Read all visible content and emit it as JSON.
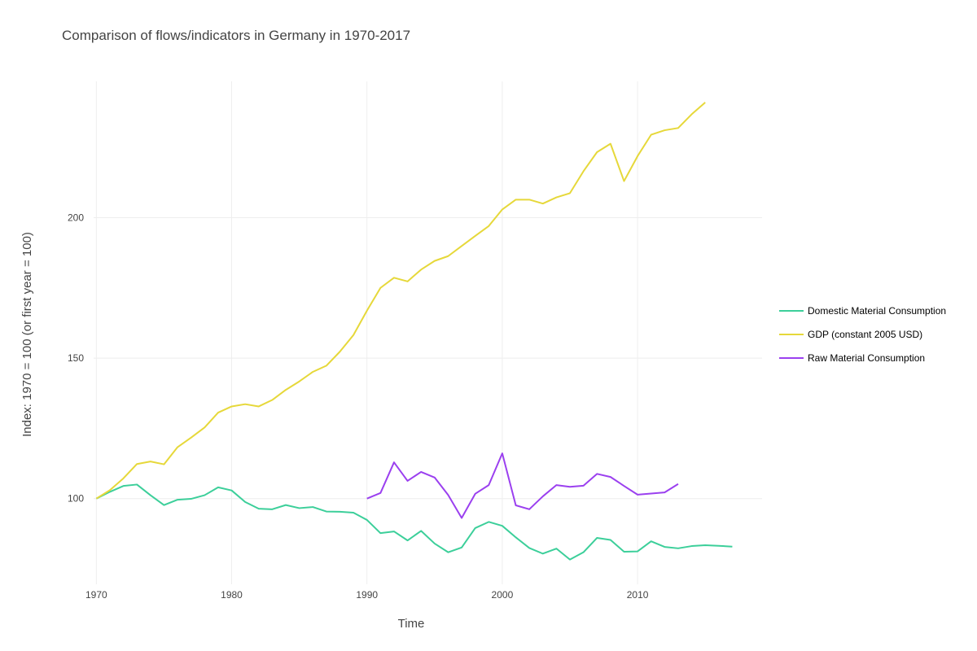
{
  "chart_data": {
    "type": "line",
    "title": "Comparison of flows/indicators in Germany in 1970-2017",
    "xlabel": "Time",
    "ylabel": "Index: 1970 = 100 (or first year = 100)",
    "xlim": [
      1969.8,
      2019.2
    ],
    "ylim": [
      69.5,
      248.5
    ],
    "x_ticks": [
      1970,
      1980,
      1990,
      2000,
      2010
    ],
    "y_ticks": [
      100,
      150,
      200
    ],
    "grid": true,
    "legend_position": "right",
    "series": [
      {
        "name": "Domestic Material Consumption",
        "color": "#3ccf9a",
        "x": [
          1970,
          1971,
          1972,
          1973,
          1974,
          1975,
          1976,
          1977,
          1978,
          1979,
          1980,
          1981,
          1982,
          1983,
          1984,
          1985,
          1986,
          1987,
          1988,
          1989,
          1990,
          1991,
          1992,
          1993,
          1994,
          1995,
          1996,
          1997,
          1998,
          1999,
          2000,
          2001,
          2002,
          2003,
          2004,
          2005,
          2006,
          2007,
          2008,
          2009,
          2010,
          2011,
          2012,
          2013,
          2014,
          2015,
          2016,
          2017
        ],
        "values": [
          100,
          102.4,
          104.5,
          105,
          101.2,
          97.7,
          99.6,
          99.9,
          101.2,
          104,
          102.9,
          98.8,
          96.4,
          96.2,
          97.7,
          96.6,
          97,
          95.4,
          95.3,
          95,
          92.4,
          87.7,
          88.3,
          85.1,
          88.5,
          84,
          80.9,
          82.6,
          89.5,
          91.7,
          90.3,
          86.2,
          82.4,
          80.4,
          82.2,
          78.3,
          80.9,
          86,
          85.3,
          81.1,
          81.2,
          84.8,
          82.8,
          82.3,
          83.1,
          83.4,
          83.2,
          82.9
        ]
      },
      {
        "name": "GDP (constant 2005 USD)",
        "color": "#e6d83a",
        "x": [
          1970,
          1971,
          1972,
          1973,
          1974,
          1975,
          1976,
          1977,
          1978,
          1979,
          1980,
          1981,
          1982,
          1983,
          1984,
          1985,
          1986,
          1987,
          1988,
          1989,
          1990,
          1991,
          1992,
          1993,
          1994,
          1995,
          1996,
          1997,
          1998,
          1999,
          2000,
          2001,
          2002,
          2003,
          2004,
          2005,
          2006,
          2007,
          2008,
          2009,
          2010,
          2011,
          2012,
          2013,
          2014,
          2015
        ],
        "values": [
          100,
          103,
          107.2,
          112.3,
          113.2,
          112.2,
          118.3,
          121.7,
          125.3,
          130.6,
          132.8,
          133.6,
          132.8,
          135.1,
          138.7,
          141.7,
          145.1,
          147.3,
          152.3,
          158.2,
          166.9,
          175,
          178.6,
          177.3,
          181.5,
          184.6,
          186.3,
          189.9,
          193.5,
          197,
          202.9,
          206.4,
          206.4,
          205,
          207.2,
          208.7,
          216.5,
          223.3,
          226.3,
          213,
          221.9,
          229.5,
          231.1,
          231.9,
          236.8,
          241
        ]
      },
      {
        "name": "Raw Material Consumption",
        "color": "#9b40ef",
        "x": [
          1990,
          1991,
          1992,
          1993,
          1994,
          1995,
          1996,
          1997,
          1998,
          1999,
          2000,
          2001,
          2002,
          2003,
          2004,
          2005,
          2006,
          2007,
          2008,
          2009,
          2010,
          2011,
          2012,
          2013
        ],
        "values": [
          100,
          102,
          112.9,
          106.3,
          109.5,
          107.5,
          101.3,
          93.1,
          101.7,
          104.8,
          116.1,
          97.6,
          96.2,
          100.8,
          104.8,
          104.2,
          104.6,
          108.8,
          107.7,
          104.5,
          101.4,
          101.8,
          102.2,
          105.2
        ]
      }
    ]
  }
}
